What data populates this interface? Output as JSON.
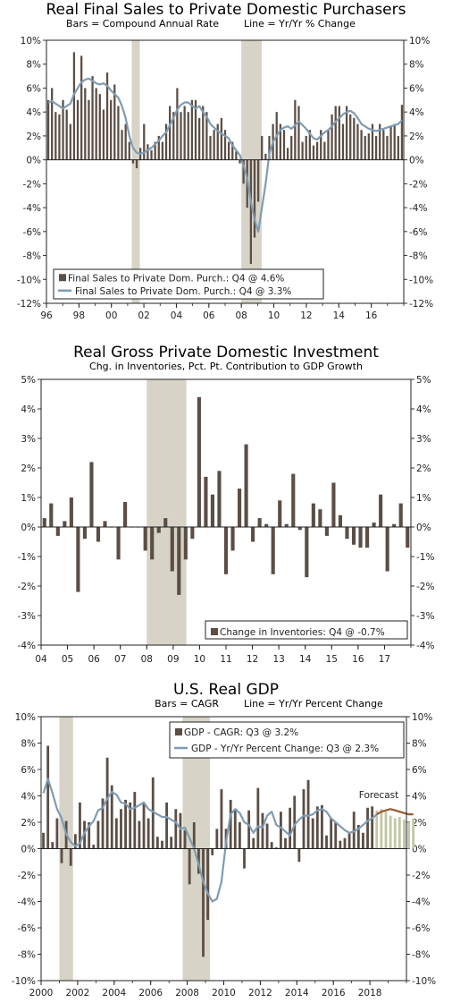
{
  "colors": {
    "bar": "#5b4e45",
    "line": "#7f9cb2",
    "recession": "#d7d3c7",
    "forecast_bar": "#c2c6a3",
    "forecast_line": "#9a5a2c"
  },
  "chart_data": [
    {
      "type": "bar",
      "title": "Real Final Sales to Private Domestic Purchasers",
      "subtitle_left": "Bars = Compound Annual Rate",
      "subtitle_right": "Line = Yr/Yr % Change",
      "ylim": [
        -12,
        10
      ],
      "yticks": [
        "10%",
        "8%",
        "6%",
        "4%",
        "2%",
        "0%",
        "-2%",
        "-4%",
        "-6%",
        "-8%",
        "-10%",
        "-12%"
      ],
      "xticks": [
        "96",
        "98",
        "00",
        "02",
        "04",
        "06",
        "08",
        "10",
        "12",
        "14",
        "16"
      ],
      "recessions": [
        [
          2001.25,
          2001.75
        ],
        [
          2008.0,
          2009.25
        ]
      ],
      "x_start": 1996.0,
      "x_end": 2018.0,
      "series": [
        {
          "name": "Final Sales to Private Dom. Purch.: Q4 @ 4.6%",
          "kind": "bar",
          "values": [
            5.0,
            6.0,
            4.0,
            3.8,
            5.0,
            4.2,
            3.0,
            9.0,
            5.0,
            8.7,
            6.0,
            5.0,
            7.0,
            6.0,
            5.5,
            4.2,
            7.3,
            5.0,
            6.3,
            4.5,
            2.5,
            3.0,
            1.5,
            -0.3,
            -0.7,
            1.0,
            3.0,
            1.3,
            0.8,
            1.5,
            2.0,
            1.5,
            3.0,
            4.5,
            4.0,
            6.0,
            4.0,
            4.5,
            4.0,
            5.0,
            5.0,
            3.5,
            4.5,
            4.0,
            2.0,
            2.5,
            3.0,
            3.5,
            2.5,
            1.5,
            1.5,
            0.7,
            -0.3,
            -2.0,
            -4.0,
            -8.7,
            -6.5,
            -3.5,
            2.0,
            0.5,
            2.0,
            3.0,
            4.0,
            3.0,
            2.5,
            1.0,
            2.0,
            5.0,
            4.5,
            1.5,
            2.0,
            2.5,
            1.2,
            1.5,
            2.5,
            1.5,
            2.5,
            3.8,
            4.5,
            4.5,
            3.0,
            4.5,
            3.8,
            3.5,
            3.0,
            2.5,
            2.0,
            2.2,
            3.0,
            2.0,
            3.0,
            2.5,
            2.0,
            2.8,
            3.0,
            2.0,
            4.6
          ]
        },
        {
          "name": "Final Sales to Private Dom. Purch.: Q4 @ 3.3%",
          "kind": "line",
          "values": [
            4.8,
            4.9,
            4.7,
            4.5,
            4.3,
            4.5,
            4.7,
            5.5,
            6.0,
            6.5,
            6.7,
            6.8,
            6.6,
            6.4,
            6.3,
            6.4,
            6.2,
            5.8,
            5.5,
            5.2,
            4.5,
            3.5,
            2.0,
            1.0,
            0.6,
            0.5,
            0.6,
            0.8,
            1.0,
            1.3,
            1.6,
            2.0,
            2.3,
            2.9,
            3.5,
            4.2,
            4.6,
            4.8,
            4.8,
            4.5,
            4.3,
            4.5,
            4.0,
            3.6,
            3.0,
            2.7,
            2.4,
            2.2,
            2.0,
            1.8,
            1.2,
            0.8,
            0.4,
            -0.5,
            -1.5,
            -3.5,
            -5.0,
            -6.0,
            -4.0,
            -2.0,
            0.5,
            1.5,
            2.0,
            2.5,
            2.7,
            2.8,
            2.6,
            2.9,
            3.2,
            2.9,
            2.6,
            2.2,
            1.8,
            1.7,
            2.0,
            2.3,
            2.5,
            2.8,
            3.2,
            3.5,
            3.8,
            4.0,
            4.1,
            3.9,
            3.5,
            3.0,
            2.8,
            2.6,
            2.5,
            2.4,
            2.5,
            2.6,
            2.7,
            2.8,
            2.9,
            3.0,
            3.3
          ]
        }
      ],
      "legend": [
        "Final Sales to Private Dom. Purch.: Q4 @ 4.6%",
        "Final Sales to Private Dom. Purch.: Q4 @ 3.3%"
      ],
      "legend_position": "bottom-left"
    },
    {
      "type": "bar",
      "title": "Real Gross Private Domestic Investment",
      "subtitle": "Chg. in Inventories, Pct. Pt. Contribution to GDP Growth",
      "ylim": [
        -4,
        5
      ],
      "yticks": [
        "5%",
        "4%",
        "3%",
        "2%",
        "1%",
        "0%",
        "-1%",
        "-2%",
        "-3%",
        "-4%"
      ],
      "xticks": [
        "04",
        "05",
        "06",
        "07",
        "08",
        "09",
        "10",
        "11",
        "12",
        "13",
        "14",
        "15",
        "16",
        "17"
      ],
      "recessions": [
        [
          2008.0,
          2009.5
        ]
      ],
      "x_start": 2004.0,
      "x_end": 2018.0,
      "series": [
        {
          "name": "Change in Inventories: Q4 @ -0.7%",
          "kind": "bar",
          "values": [
            0.3,
            0.8,
            -0.3,
            0.2,
            1.0,
            -2.2,
            -0.4,
            2.2,
            -0.5,
            0.2,
            0.0,
            -1.1,
            0.85,
            0.0,
            0.0,
            -0.8,
            -1.1,
            -0.2,
            0.3,
            -1.5,
            -2.3,
            -1.1,
            -0.4,
            4.4,
            1.7,
            1.1,
            1.9,
            -1.6,
            -0.8,
            1.3,
            2.8,
            -0.5,
            0.3,
            0.1,
            -1.6,
            0.9,
            0.1,
            1.8,
            -0.1,
            -1.7,
            0.8,
            0.6,
            -0.3,
            1.5,
            0.4,
            -0.4,
            -0.6,
            -0.7,
            -0.7,
            0.15,
            1.1,
            -1.5,
            0.1,
            0.8,
            -0.7
          ]
        }
      ],
      "legend": [
        "Change in Inventories: Q4 @ -0.7%"
      ],
      "legend_position": "bottom-right"
    },
    {
      "type": "bar",
      "title": "U.S. Real GDP",
      "subtitle_left": "Bars = CAGR",
      "subtitle_right": "Line = Yr/Yr Percent Change",
      "ylim": [
        -10,
        10
      ],
      "yticks": [
        "10%",
        "8%",
        "6%",
        "4%",
        "2%",
        "0%",
        "-2%",
        "-4%",
        "-6%",
        "-8%",
        "-10%"
      ],
      "xticks": [
        "2000",
        "2002",
        "2004",
        "2006",
        "2008",
        "2010",
        "2012",
        "2014",
        "2016",
        "2018"
      ],
      "recessions": [
        [
          2001.0,
          2001.75
        ],
        [
          2007.75,
          2009.25
        ]
      ],
      "x_start": 2000.0,
      "x_end": 2020.0,
      "annotation": "Forecast",
      "series": [
        {
          "name": "GDP - CAGR: Q3 @ 3.2%",
          "kind": "bar",
          "values": [
            1.2,
            7.8,
            0.5,
            2.3,
            -1.1,
            2.1,
            -1.3,
            1.1,
            3.5,
            2.1,
            2.0,
            0.3,
            2.1,
            3.8,
            6.9,
            4.8,
            2.3,
            3.0,
            3.7,
            3.5,
            4.3,
            2.1,
            3.4,
            2.3,
            5.4,
            0.9,
            0.6,
            3.5,
            0.9,
            3.0,
            2.7,
            1.4,
            -2.7,
            2.0,
            -1.9,
            -8.2,
            -5.4,
            -0.5,
            1.5,
            4.5,
            1.5,
            3.7,
            3.0,
            2.0,
            -1.5,
            2.9,
            0.8,
            4.6,
            2.7,
            1.9,
            0.5,
            0.1,
            2.8,
            0.8,
            3.1,
            4.0,
            -1.0,
            4.5,
            5.2,
            2.3,
            3.2,
            3.3,
            1.0,
            2.3,
            2.0,
            0.6,
            0.8,
            1.2,
            2.8,
            1.8,
            1.2,
            3.1,
            3.2,
            2.9,
            3.0,
            2.8,
            2.5,
            2.3,
            2.4,
            2.2,
            2.0,
            2.3
          ],
          "forecast_from_index": 73
        },
        {
          "name": "GDP - Yr/Yr Percent Change: Q3 @ 2.3%",
          "kind": "line",
          "values": [
            4.2,
            5.3,
            4.2,
            3.0,
            2.3,
            1.1,
            0.5,
            0.2,
            0.4,
            1.2,
            1.7,
            2.1,
            2.9,
            3.1,
            3.8,
            4.3,
            4.1,
            3.5,
            3.4,
            3.0,
            3.1,
            3.3,
            3.5,
            3.0,
            2.8,
            2.6,
            2.4,
            2.4,
            2.2,
            2.0,
            1.5,
            1.6,
            0.8,
            0.0,
            -1.2,
            -2.5,
            -3.4,
            -4.0,
            -3.8,
            -2.5,
            0.5,
            2.6,
            3.0,
            2.7,
            2.0,
            1.8,
            1.2,
            1.7,
            1.6,
            2.5,
            2.8,
            1.8,
            1.6,
            1.3,
            1.0,
            1.8,
            2.2,
            2.5,
            2.5,
            2.6,
            2.9,
            3.0,
            2.8,
            2.3,
            2.0,
            1.7,
            1.4,
            1.2,
            1.3,
            1.5,
            1.8,
            2.1,
            2.3,
            2.6,
            2.8,
            2.9,
            3.0,
            2.9,
            2.8,
            2.7,
            2.6,
            2.6
          ],
          "forecast_from_index": 73
        }
      ],
      "legend": [
        "GDP - CAGR: Q3 @ 3.2%",
        "GDP - Yr/Yr Percent Change: Q3 @ 2.3%"
      ],
      "legend_position": "top-center"
    }
  ]
}
